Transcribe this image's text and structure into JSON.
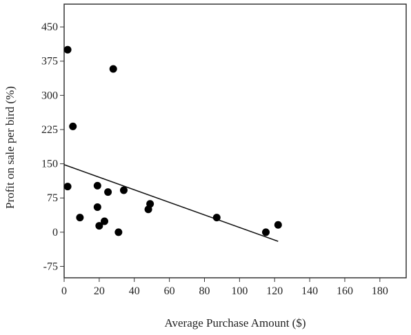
{
  "chart_data": {
    "type": "scatter",
    "title": "",
    "xlabel": "Average Purchase Amount ($)",
    "ylabel": "Profit on sale per bird (%)",
    "xlim": [
      0,
      195
    ],
    "ylim": [
      -100,
      500
    ],
    "x_ticks": [
      0,
      20,
      40,
      60,
      80,
      100,
      120,
      140,
      160,
      180
    ],
    "y_ticks": [
      -75,
      0,
      75,
      150,
      225,
      300,
      375,
      450
    ],
    "grid": false,
    "legend": "none",
    "point_color": "#000000",
    "points": [
      {
        "x": 2,
        "y": 400
      },
      {
        "x": 28,
        "y": 358
      },
      {
        "x": 5,
        "y": 232
      },
      {
        "x": 2,
        "y": 100
      },
      {
        "x": 19,
        "y": 102
      },
      {
        "x": 25,
        "y": 88
      },
      {
        "x": 34,
        "y": 92
      },
      {
        "x": 19,
        "y": 55
      },
      {
        "x": 9,
        "y": 32
      },
      {
        "x": 20,
        "y": 14
      },
      {
        "x": 23,
        "y": 24
      },
      {
        "x": 31,
        "y": 0
      },
      {
        "x": 49,
        "y": 62
      },
      {
        "x": 48,
        "y": 50
      },
      {
        "x": 87,
        "y": 32
      },
      {
        "x": 115,
        "y": 0
      },
      {
        "x": 122,
        "y": 16
      }
    ],
    "trend_line": {
      "x": [
        0,
        122
      ],
      "y": [
        148,
        -20
      ]
    }
  }
}
